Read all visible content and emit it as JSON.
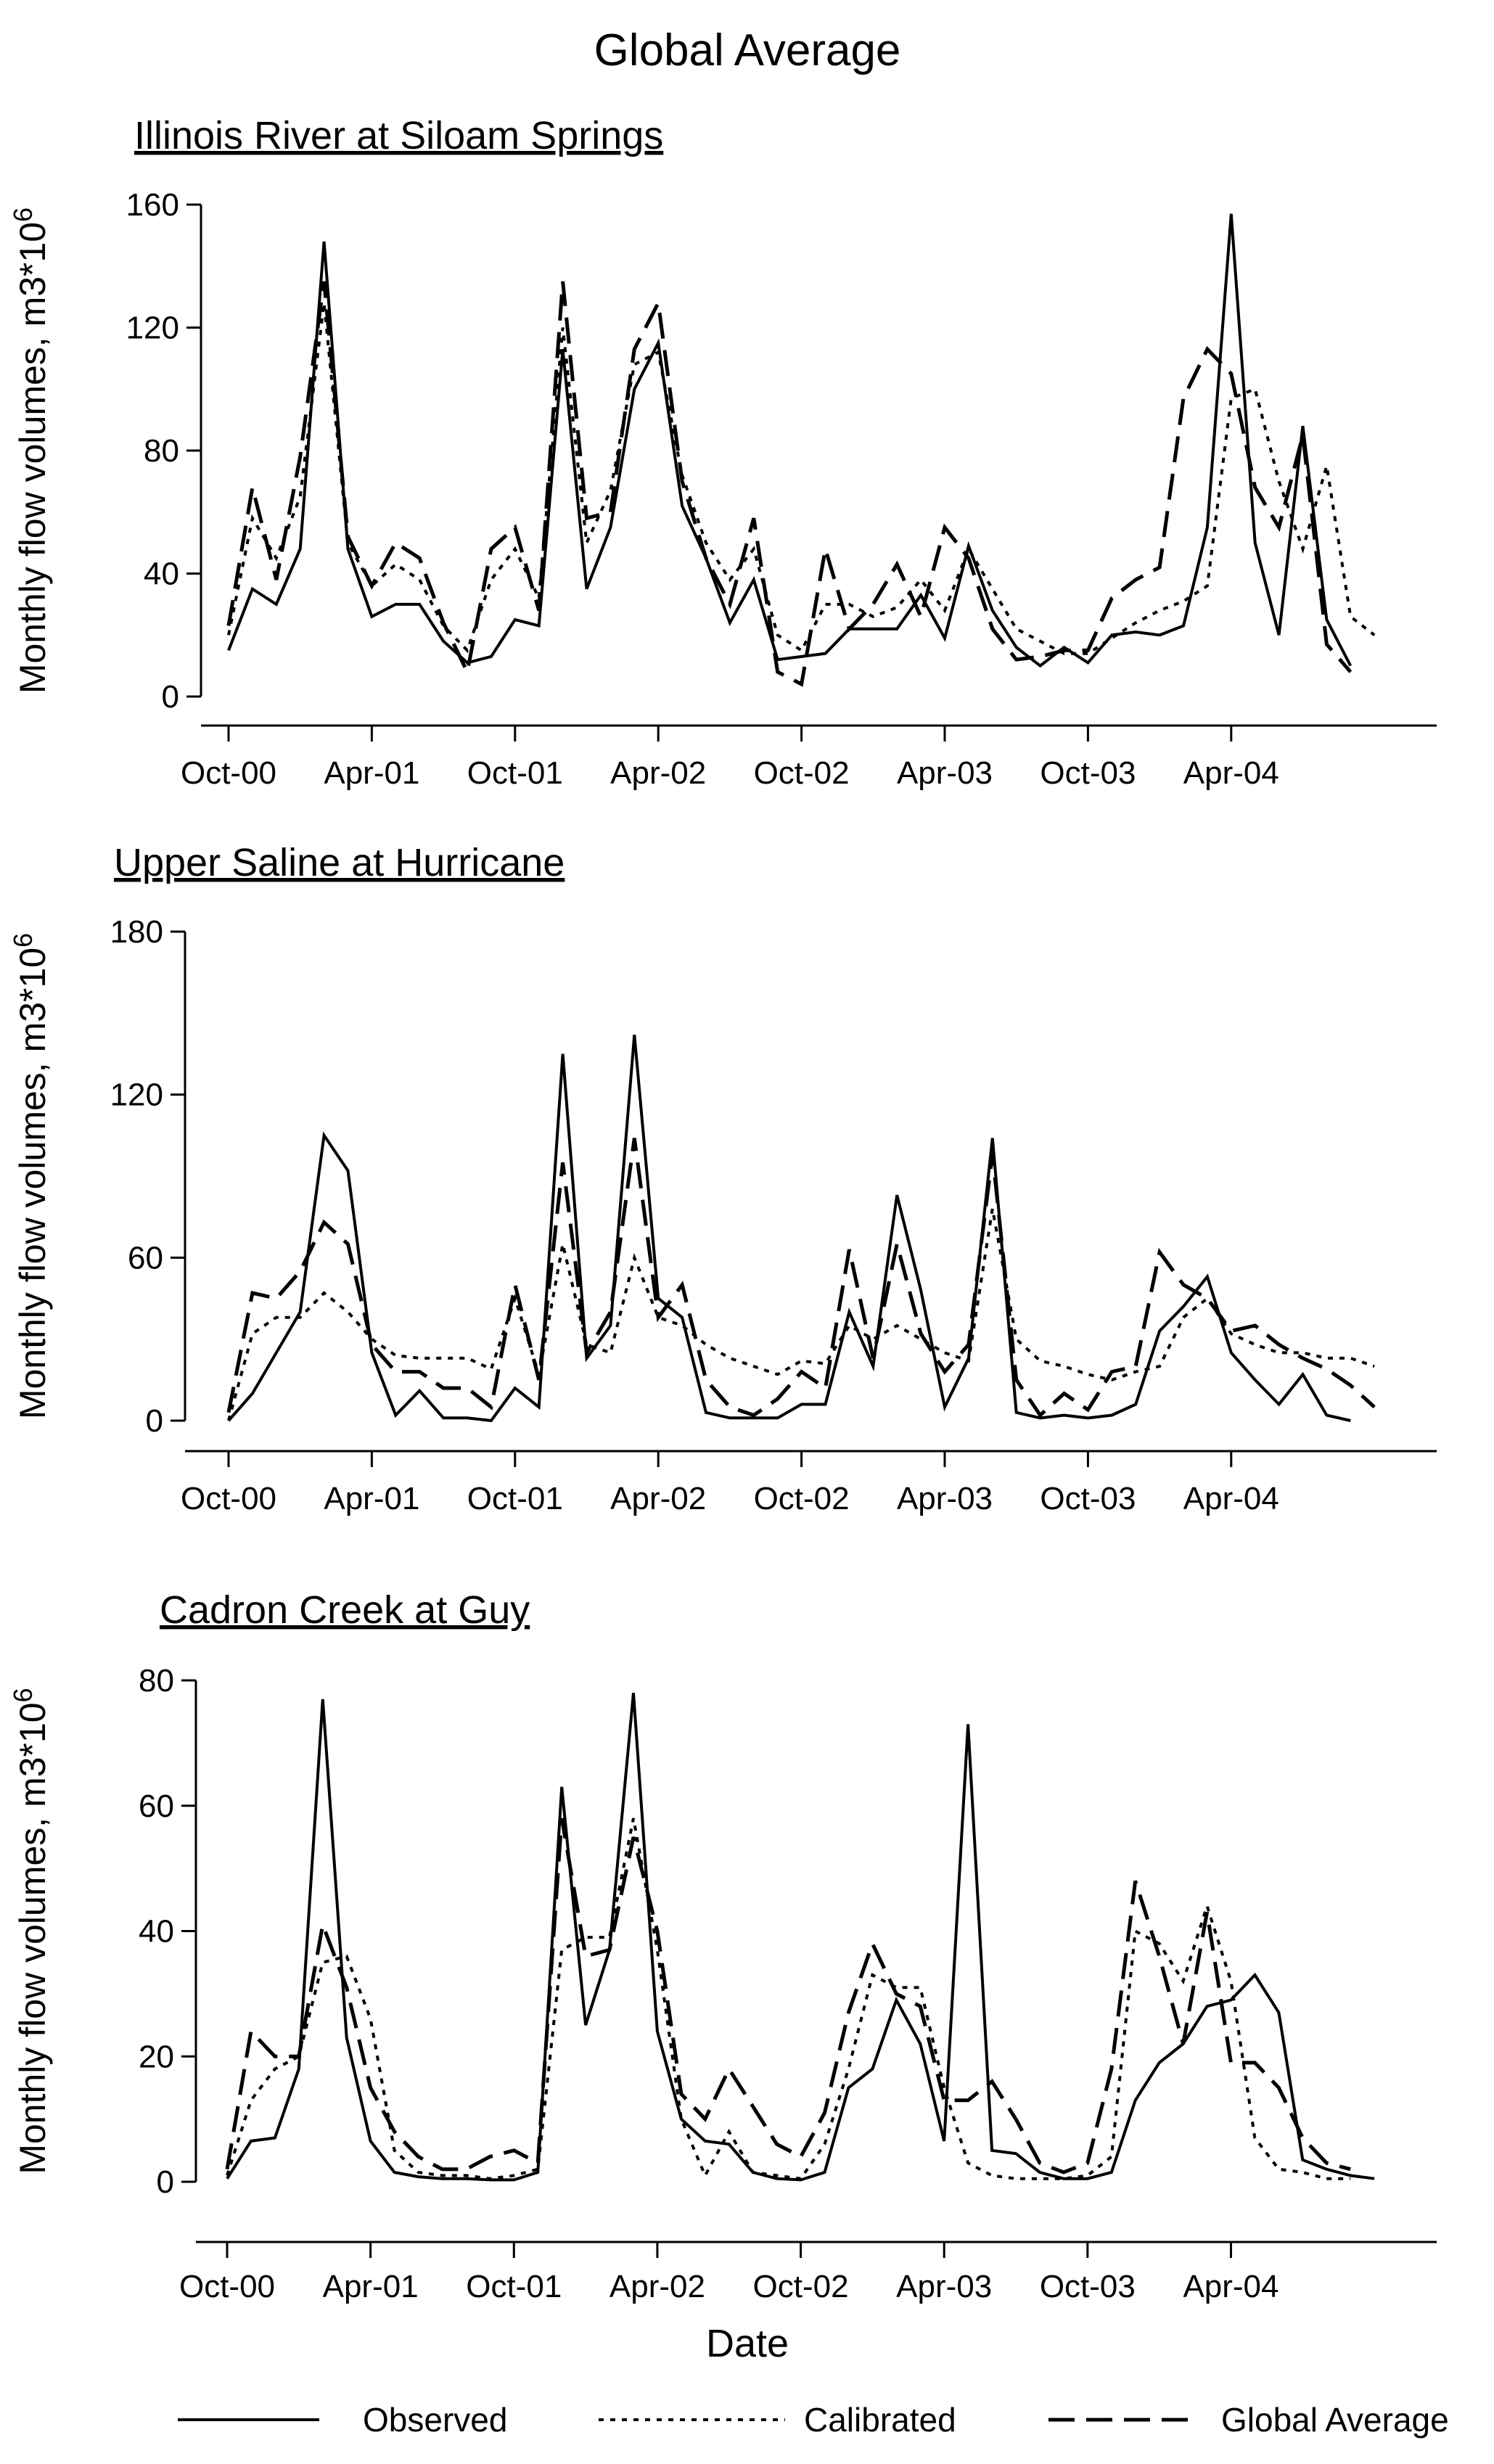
{
  "title": "Global Average",
  "chart_data": [
    {
      "type": "line",
      "title": "Illinois River at Siloam Springs",
      "ylabel": "Monthly flow volumes, m3*10",
      "ylabel_exp": "6",
      "xlabel": "",
      "ylim": [
        0,
        160
      ],
      "yticks": [
        0,
        40,
        80,
        120,
        160
      ],
      "xlim": [
        0,
        50
      ],
      "xtick_positions": [
        0,
        6,
        12,
        18,
        24,
        30,
        36,
        42
      ],
      "xtick_labels": [
        "Oct-00",
        "Apr-01",
        "Oct-01",
        "Apr-02",
        "Oct-02",
        "Apr-03",
        "Oct-03",
        "Apr-04"
      ],
      "x_unit": "months since Oct-00",
      "series": [
        {
          "name": "Observed",
          "style": "solid",
          "values": [
            15,
            35,
            30,
            48,
            148,
            48,
            26,
            30,
            30,
            18,
            11,
            13,
            25,
            23,
            113,
            35,
            55,
            100,
            115,
            62,
            45,
            24,
            38,
            12,
            13,
            14,
            22,
            22,
            22,
            33,
            19,
            49,
            28,
            16,
            10,
            16,
            11,
            20,
            21,
            20,
            23,
            55,
            157,
            50,
            20,
            88,
            25,
            10
          ]
        },
        {
          "name": "Calibrated",
          "style": "dotted",
          "values": [
            20,
            58,
            45,
            65,
            128,
            50,
            36,
            43,
            38,
            23,
            15,
            38,
            48,
            32,
            120,
            50,
            67,
            108,
            112,
            72,
            50,
            38,
            48,
            20,
            15,
            30,
            30,
            26,
            29,
            38,
            28,
            48,
            35,
            22,
            18,
            14,
            14,
            19,
            24,
            28,
            31,
            36,
            97,
            100,
            70,
            48,
            75,
            26,
            20
          ]
        },
        {
          "name": "Global Average",
          "style": "dashed",
          "values": [
            23,
            68,
            38,
            78,
            135,
            52,
            36,
            50,
            45,
            24,
            8,
            48,
            55,
            28,
            135,
            58,
            60,
            113,
            128,
            70,
            45,
            30,
            58,
            8,
            4,
            48,
            22,
            30,
            43,
            26,
            55,
            45,
            22,
            12,
            13,
            15,
            15,
            32,
            38,
            42,
            97,
            113,
            105,
            68,
            55,
            85,
            17,
            8
          ]
        }
      ]
    },
    {
      "type": "line",
      "title": "Upper Saline at Hurricane",
      "ylabel": "Monthly flow volumes, m3*10",
      "ylabel_exp": "6",
      "xlabel": "",
      "ylim": [
        0,
        180
      ],
      "yticks": [
        0,
        60,
        120,
        180
      ],
      "xlim": [
        0,
        50
      ],
      "xtick_positions": [
        0,
        6,
        12,
        18,
        24,
        30,
        36,
        42
      ],
      "xtick_labels": [
        "Oct-00",
        "Apr-01",
        "Oct-01",
        "Apr-02",
        "Oct-02",
        "Apr-03",
        "Oct-03",
        "Apr-04"
      ],
      "x_unit": "months since Oct-00",
      "series": [
        {
          "name": "Observed",
          "style": "solid",
          "values": [
            0,
            10,
            25,
            40,
            105,
            92,
            25,
            2,
            11,
            1,
            1,
            0,
            12,
            5,
            135,
            23,
            35,
            142,
            45,
            38,
            3,
            1,
            1,
            1,
            6,
            6,
            40,
            20,
            83,
            48,
            5,
            23,
            104,
            3,
            1,
            2,
            1,
            2,
            6,
            33,
            42,
            53,
            25,
            15,
            6,
            17,
            2,
            0
          ]
        },
        {
          "name": "Calibrated",
          "style": "dotted",
          "values": [
            0,
            32,
            38,
            38,
            47,
            40,
            30,
            24,
            23,
            23,
            23,
            19,
            45,
            17,
            65,
            28,
            25,
            60,
            38,
            35,
            28,
            23,
            20,
            17,
            22,
            21,
            35,
            30,
            35,
            30,
            25,
            22,
            78,
            30,
            22,
            20,
            17,
            15,
            18,
            20,
            38,
            45,
            32,
            28,
            25,
            25,
            23,
            23,
            20
          ]
        },
        {
          "name": "Global Average",
          "style": "dashed",
          "values": [
            3,
            47,
            45,
            55,
            73,
            65,
            28,
            18,
            18,
            12,
            12,
            5,
            50,
            15,
            95,
            25,
            40,
            104,
            38,
            50,
            15,
            5,
            2,
            8,
            18,
            12,
            63,
            23,
            65,
            32,
            18,
            28,
            98,
            15,
            2,
            10,
            4,
            18,
            20,
            62,
            50,
            45,
            33,
            35,
            28,
            23,
            19,
            13,
            5
          ]
        }
      ]
    },
    {
      "type": "line",
      "title": "Cadron Creek at Guy",
      "ylabel": "Monthly flow volumes, m3*10",
      "ylabel_exp": "6",
      "xlabel": "Date",
      "ylim": [
        0,
        80
      ],
      "yticks": [
        0,
        20,
        40,
        60,
        80
      ],
      "xlim": [
        0,
        50
      ],
      "xtick_positions": [
        0,
        6,
        12,
        18,
        24,
        30,
        36,
        42
      ],
      "xtick_labels": [
        "Oct-00",
        "Apr-01",
        "Oct-01",
        "Apr-02",
        "Oct-02",
        "Apr-03",
        "Oct-03",
        "Apr-04"
      ],
      "x_unit": "months since Oct-00",
      "series": [
        {
          "name": "Observed",
          "style": "solid",
          "values": [
            0.5,
            6.5,
            7,
            18,
            77,
            23,
            6.5,
            1.5,
            0.8,
            0.5,
            0.5,
            0.3,
            0.3,
            1.5,
            63,
            25,
            37,
            78,
            24,
            10,
            6.5,
            6,
            1.5,
            0.5,
            0.3,
            1.5,
            15,
            18,
            29,
            22,
            6.5,
            73,
            5,
            4.5,
            1.5,
            0.5,
            0.5,
            1.5,
            13,
            19,
            22,
            28,
            29,
            33,
            27,
            3.5,
            2,
            1,
            0.5
          ]
        },
        {
          "name": "Calibrated",
          "style": "dotted",
          "values": [
            1,
            13,
            18,
            20,
            35,
            36,
            26,
            5,
            1.5,
            1,
            1,
            0.5,
            1,
            2,
            37,
            39,
            39,
            58,
            37,
            10,
            1,
            8,
            1.5,
            1,
            0.5,
            6,
            18,
            33,
            31,
            31,
            15,
            3,
            1,
            0.5,
            0.5,
            0.5,
            1,
            4,
            40,
            38,
            32,
            44,
            32,
            7,
            2,
            1.5,
            0.5,
            0.5
          ]
        },
        {
          "name": "Global Average",
          "style": "dashed",
          "values": [
            2,
            24,
            20,
            20,
            41,
            31,
            15,
            8,
            4,
            2,
            2,
            4,
            5,
            3,
            58,
            36,
            37,
            55,
            40,
            14,
            10,
            18,
            12,
            6,
            4,
            11,
            27,
            38,
            30,
            28,
            13,
            13,
            16,
            10,
            3,
            1.5,
            3,
            18,
            48,
            36,
            22,
            43,
            19,
            19,
            15,
            7,
            3,
            2
          ]
        }
      ]
    }
  ],
  "legend": {
    "items": [
      {
        "label": "Observed",
        "style": "solid"
      },
      {
        "label": "Calibrated",
        "style": "dotted"
      },
      {
        "label": "Global Average",
        "style": "dashed"
      }
    ]
  }
}
